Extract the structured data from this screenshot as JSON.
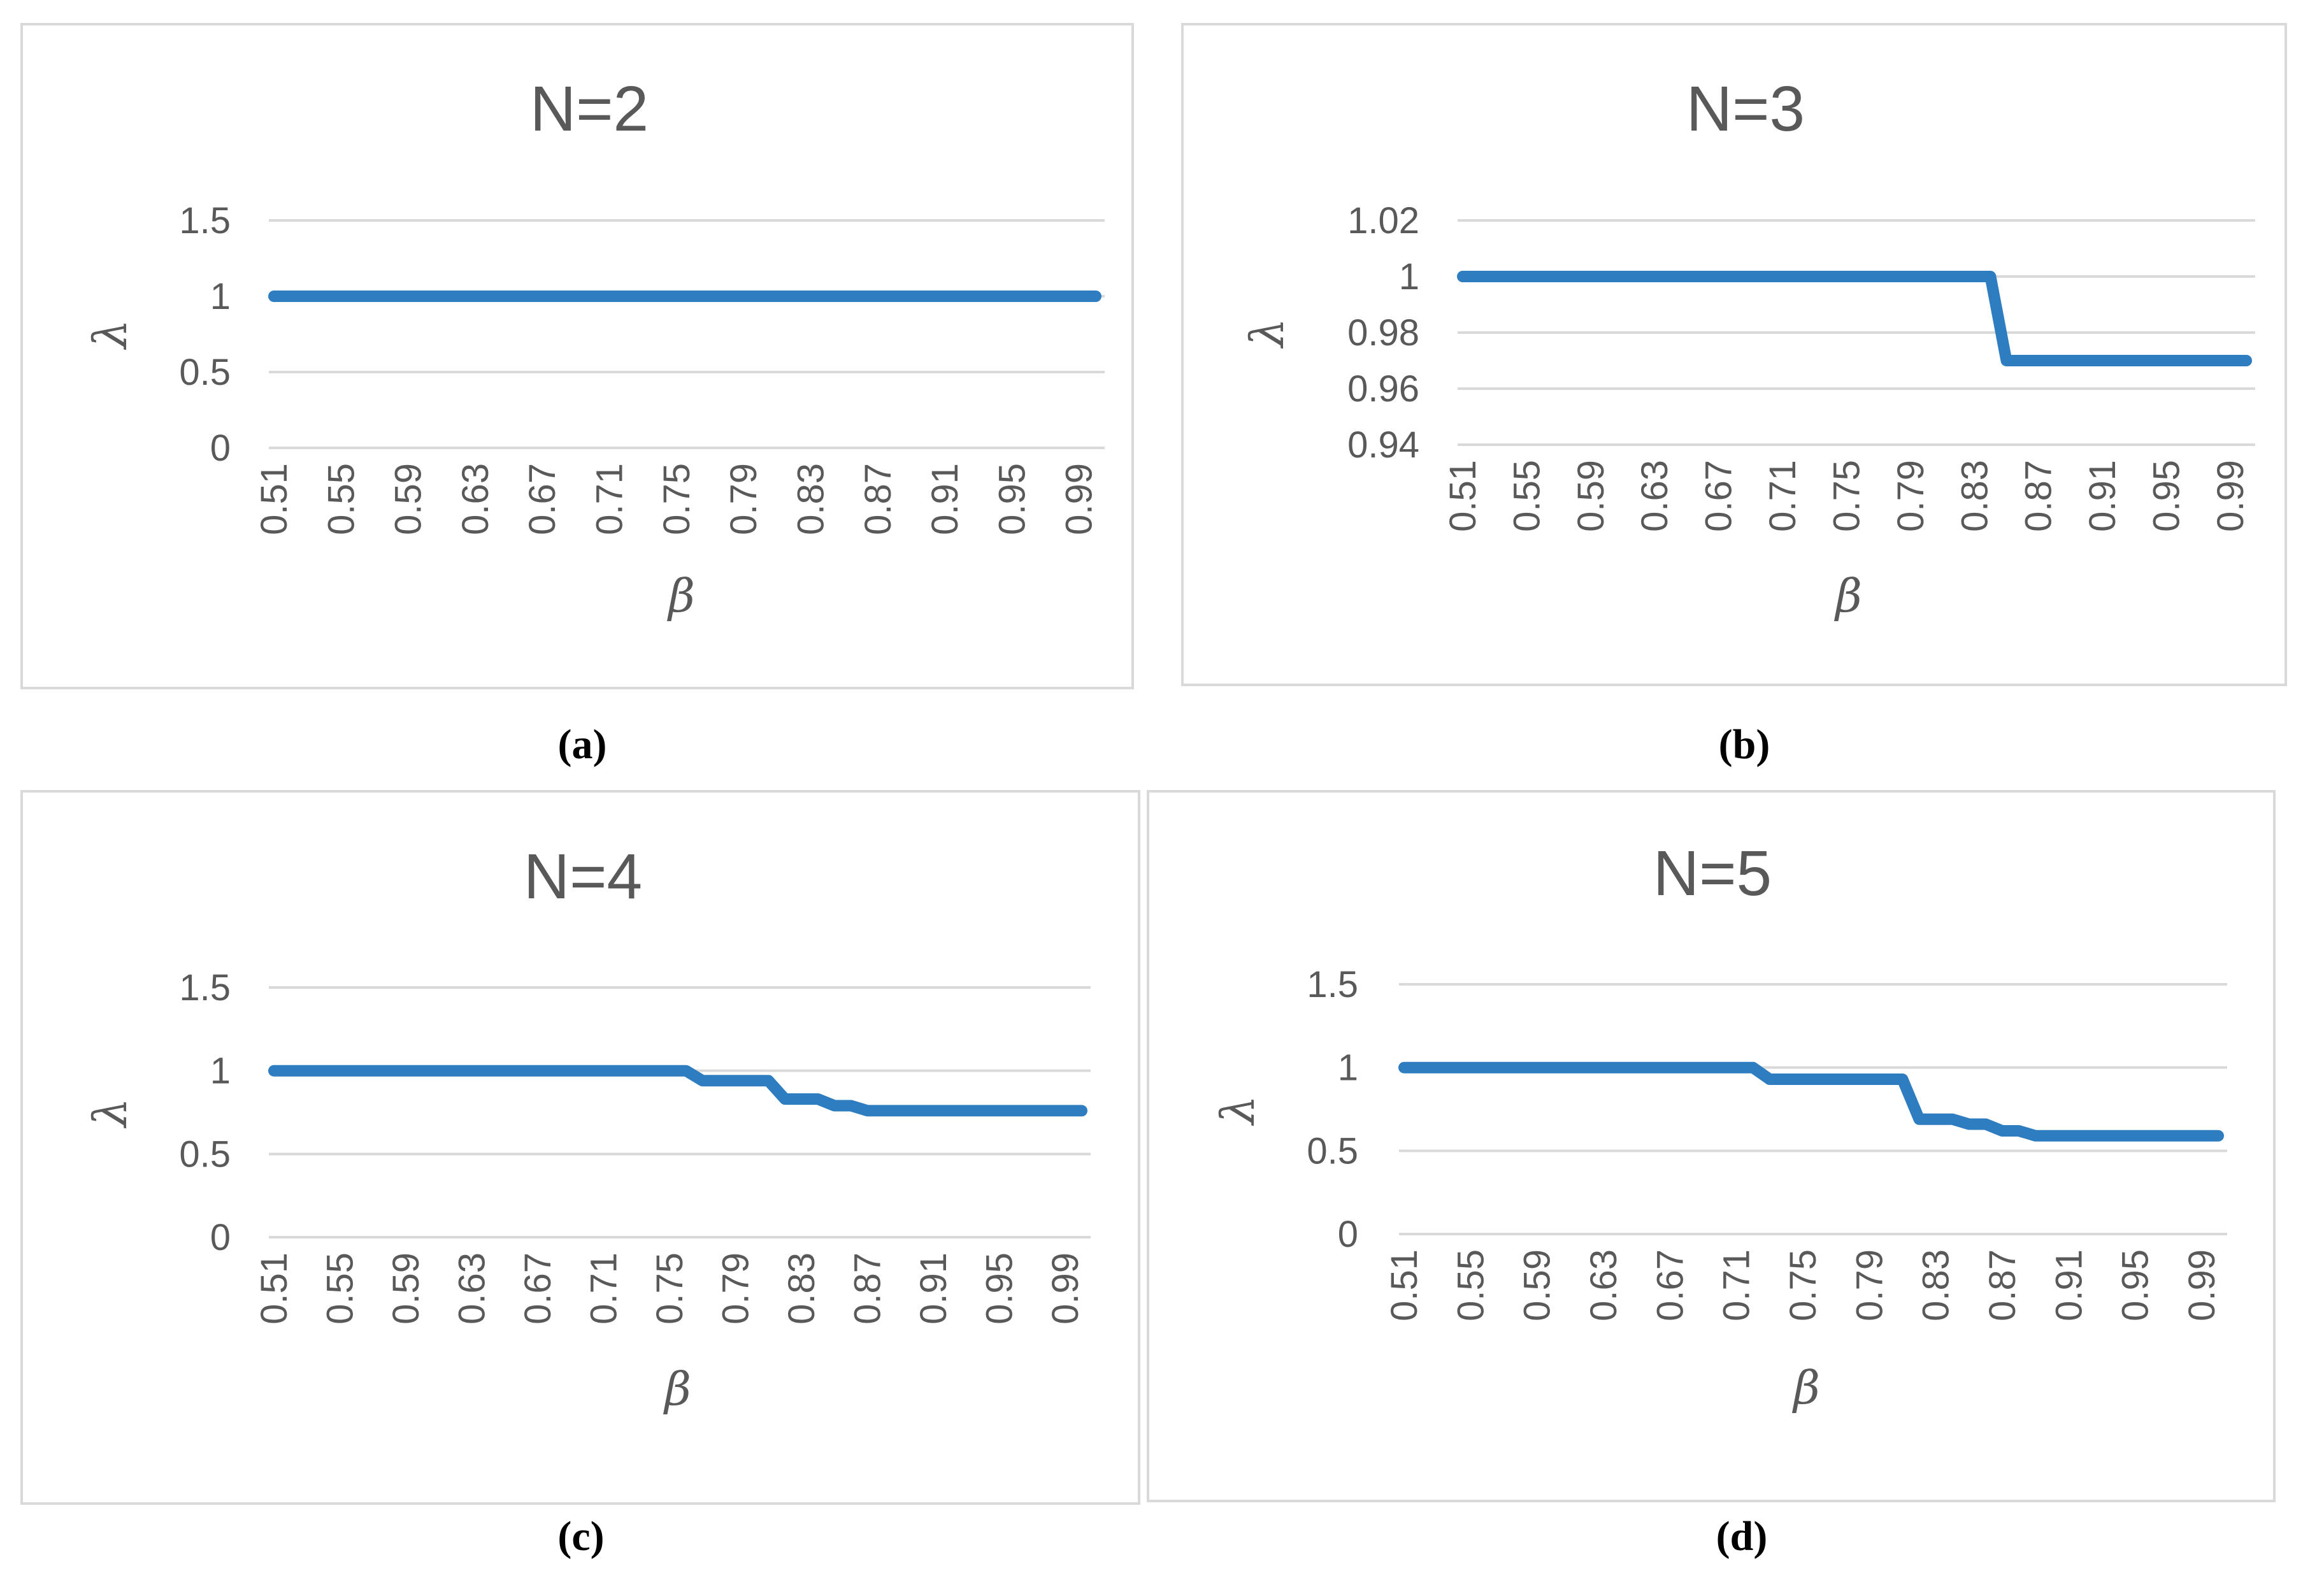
{
  "panels": [
    {
      "caption": "(a)"
    },
    {
      "caption": "(b)"
    },
    {
      "caption": "(c)"
    },
    {
      "caption": "(d)"
    }
  ],
  "chart_data": [
    {
      "type": "line",
      "title": "N=2",
      "xlabel": "β",
      "ylabel": "λ",
      "ylim": [
        0,
        1.5
      ],
      "yticks": [
        "0",
        "0.5",
        "1",
        "1.5"
      ],
      "y_tick_values": [
        0,
        0.5,
        1,
        1.5
      ],
      "x_tick_labels": [
        "0.51",
        "0.55",
        "0.59",
        "0.63",
        "0.67",
        "0.71",
        "0.75",
        "0.79",
        "0.83",
        "0.87",
        "0.91",
        "0.95",
        "0.99"
      ],
      "grid": true,
      "color": "#2e7dc0",
      "x": [
        0.51,
        1.0
      ],
      "y": [
        1,
        1
      ]
    },
    {
      "type": "line",
      "title": "N=3",
      "xlabel": "β",
      "ylabel": "λ",
      "ylim": [
        0.94,
        1.02
      ],
      "yticks": [
        "0.94",
        "0.96",
        "0.98",
        "1",
        "1.02"
      ],
      "y_tick_values": [
        0.94,
        0.96,
        0.98,
        1.0,
        1.02
      ],
      "x_tick_labels": [
        "0.51",
        "0.55",
        "0.59",
        "0.63",
        "0.67",
        "0.71",
        "0.75",
        "0.79",
        "0.83",
        "0.87",
        "0.91",
        "0.95",
        "0.99"
      ],
      "grid": true,
      "color": "#2e7dc0",
      "x": [
        0.51,
        0.84,
        0.85,
        1.0
      ],
      "y": [
        1,
        1,
        0.97,
        0.97
      ]
    },
    {
      "type": "line",
      "title": "N=4",
      "xlabel": "β",
      "ylabel": "λ",
      "ylim": [
        0,
        1.5
      ],
      "yticks": [
        "0",
        "0.5",
        "1",
        "1.5"
      ],
      "y_tick_values": [
        0,
        0.5,
        1,
        1.5
      ],
      "x_tick_labels": [
        "0.51",
        "0.55",
        "0.59",
        "0.63",
        "0.67",
        "0.71",
        "0.75",
        "0.79",
        "0.83",
        "0.87",
        "0.91",
        "0.95",
        "0.99"
      ],
      "grid": true,
      "color": "#2e7dc0",
      "x": [
        0.51,
        0.76,
        0.77,
        0.81,
        0.82,
        0.84,
        0.85,
        0.86,
        0.87,
        1.0
      ],
      "y": [
        1,
        1,
        0.94,
        0.94,
        0.83,
        0.83,
        0.79,
        0.79,
        0.76,
        0.76
      ]
    },
    {
      "type": "line",
      "title": "N=5",
      "xlabel": "β",
      "ylabel": "λ",
      "ylim": [
        0,
        1.5
      ],
      "yticks": [
        "0",
        "0.5",
        "1",
        "1.5"
      ],
      "y_tick_values": [
        0,
        0.5,
        1,
        1.5
      ],
      "x_tick_labels": [
        "0.51",
        "0.55",
        "0.59",
        "0.63",
        "0.67",
        "0.71",
        "0.75",
        "0.79",
        "0.83",
        "0.87",
        "0.91",
        "0.95",
        "0.99"
      ],
      "grid": true,
      "color": "#2e7dc0",
      "x": [
        0.51,
        0.72,
        0.73,
        0.81,
        0.82,
        0.84,
        0.85,
        0.86,
        0.87,
        0.88,
        0.89,
        1.0
      ],
      "y": [
        1,
        1,
        0.93,
        0.93,
        0.69,
        0.69,
        0.66,
        0.66,
        0.62,
        0.62,
        0.59,
        0.59
      ]
    }
  ]
}
